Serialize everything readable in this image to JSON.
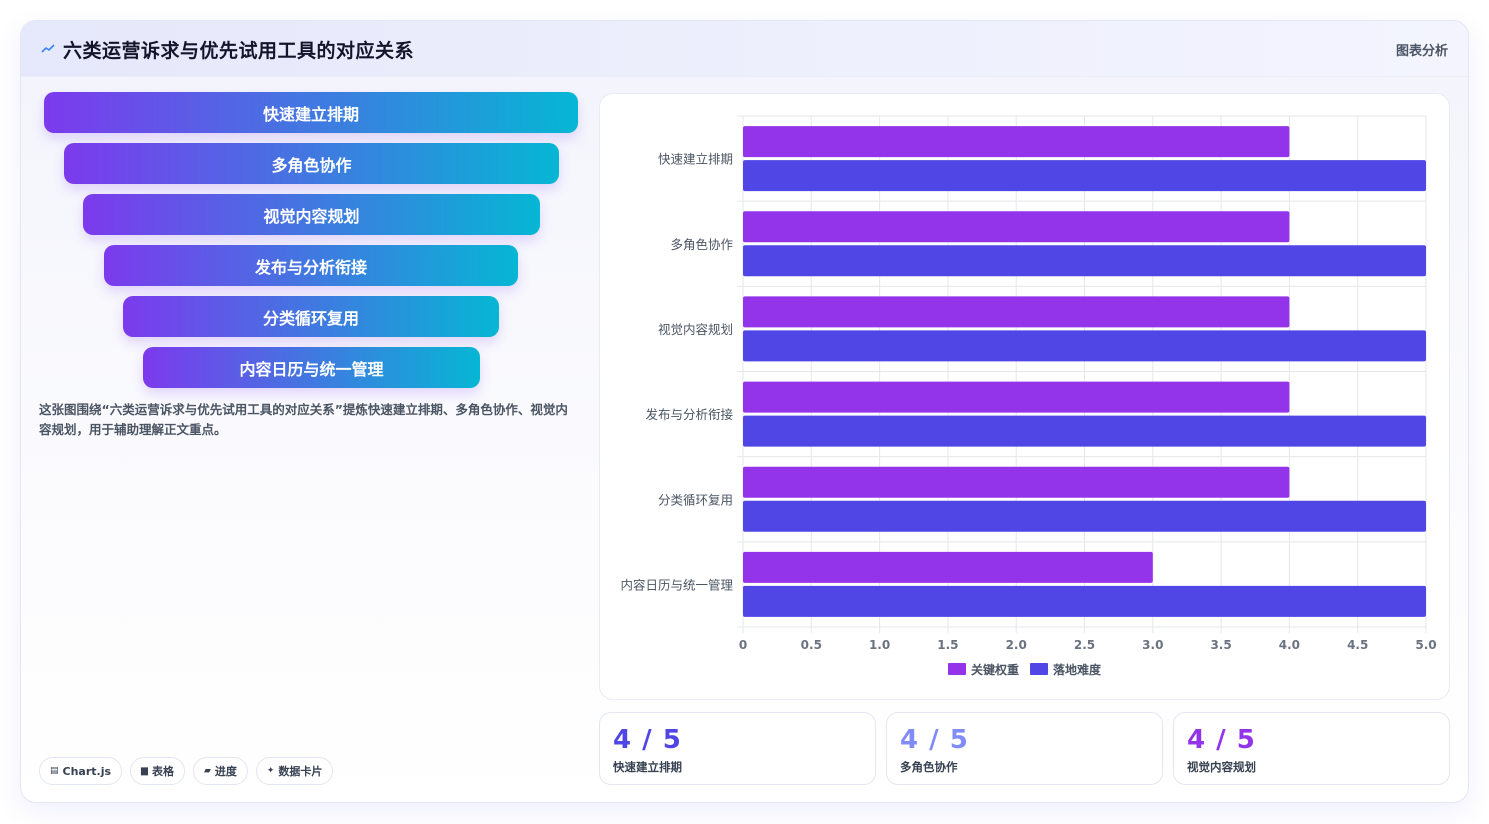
{
  "header": {
    "title": "六类运营诉求与优先试用工具的对应关系",
    "tag": "图表分析",
    "icon": "chart-line-icon"
  },
  "funnel": {
    "items": [
      "快速建立排期",
      "多角色协作",
      "视觉内容规划",
      "发布与分析衔接",
      "分类循环复用",
      "内容日历与统一管理"
    ],
    "gradient": [
      "#7c3aed",
      "#06b6d4"
    ]
  },
  "description": "这张图围绕“六类运营诉求与优先试用工具的对应关系”提炼快速建立排期、多角色协作、视觉内容规划，用于辅助理解正文重点。",
  "chips": [
    {
      "icon": "chart-icon",
      "label": "Chart.js"
    },
    {
      "icon": "table-icon",
      "label": "表格"
    },
    {
      "icon": "progress-icon",
      "label": "进度"
    },
    {
      "icon": "sparkle-icon",
      "label": "数据卡片"
    }
  ],
  "chart_data": {
    "type": "bar",
    "orientation": "horizontal",
    "categories": [
      "快速建立排期",
      "多角色协作",
      "视觉内容规划",
      "发布与分析衔接",
      "分类循环复用",
      "内容日历与统一管理"
    ],
    "series": [
      {
        "name": "关键权重",
        "color": "#9333ea",
        "values": [
          4,
          4,
          4,
          4,
          4,
          3
        ]
      },
      {
        "name": "落地难度",
        "color": "#4f46e5",
        "values": [
          5,
          5,
          5,
          5,
          5,
          5
        ]
      }
    ],
    "xlim": [
      0,
      5
    ],
    "xticks": [
      "0",
      "0.5",
      "1.0",
      "1.5",
      "2.0",
      "2.5",
      "3.0",
      "3.5",
      "4.0",
      "4.5",
      "5.0"
    ],
    "grid": true,
    "legend_position": "bottom"
  },
  "stats": [
    {
      "value": "4 / 5",
      "label": "快速建立排期",
      "color": "#4f46e5"
    },
    {
      "value": "4 / 5",
      "label": "多角色协作",
      "color": "#818cf8"
    },
    {
      "value": "4 / 5",
      "label": "视觉内容规划",
      "color": "#9333ea"
    }
  ]
}
